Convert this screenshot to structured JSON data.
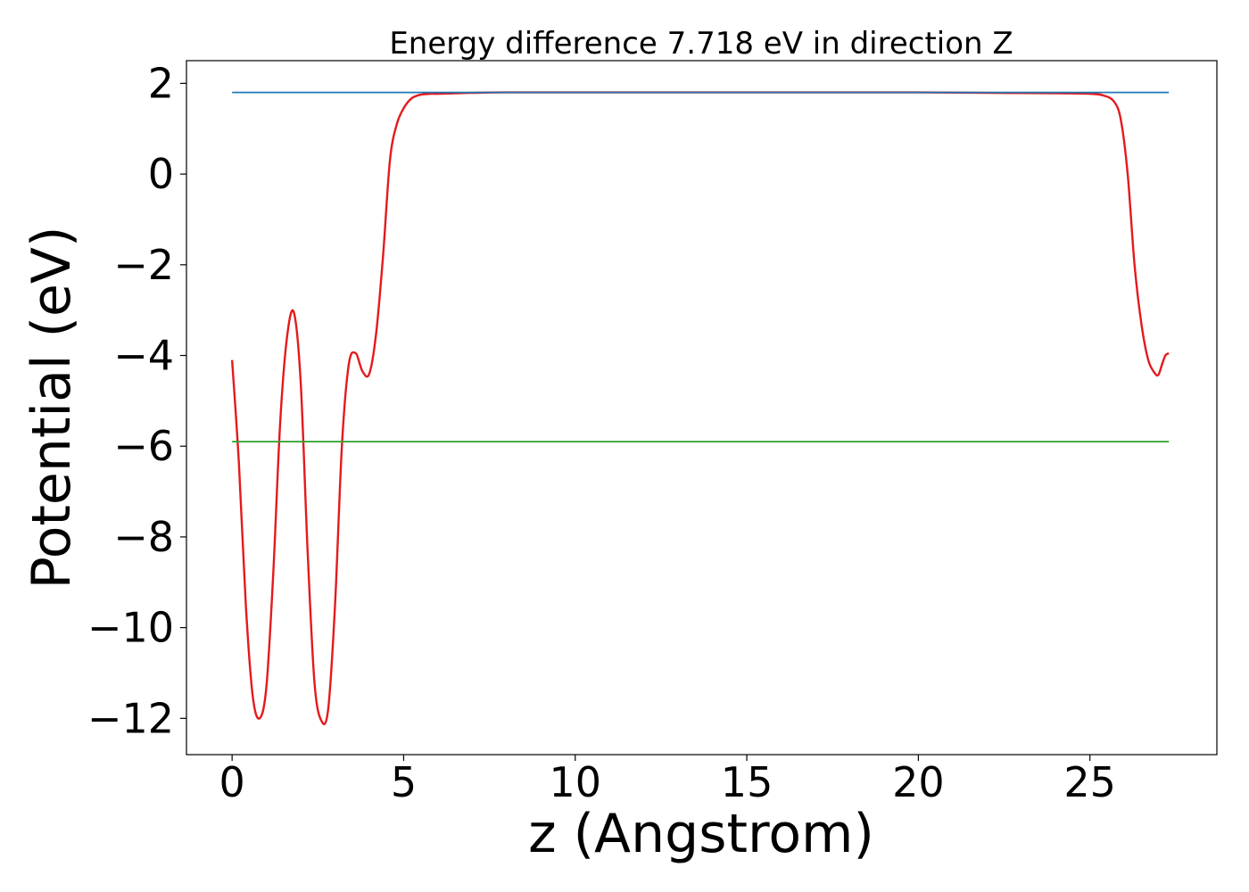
{
  "chart_data": {
    "type": "line",
    "title": "Energy difference 7.718 eV in direction Z",
    "xlabel": "z (Angstrom)",
    "ylabel": "Potential (eV)",
    "xlim": [
      -1.33,
      28.7
    ],
    "ylim": [
      -12.8,
      2.5
    ],
    "xticks": [
      0,
      5,
      10,
      15,
      20,
      25
    ],
    "yticks": [
      2,
      0,
      -2,
      -4,
      -6,
      -8,
      -10,
      -12
    ],
    "xtick_labels": [
      "0",
      "5",
      "10",
      "15",
      "20",
      "25"
    ],
    "ytick_labels": [
      "2",
      "0",
      "−2",
      "−4",
      "−6",
      "−8",
      "−10",
      "−12"
    ],
    "grid": false,
    "legend": "none",
    "series": [
      {
        "color": "#e41a1c",
        "x": [
          0.0,
          0.2,
          0.4,
          0.6,
          0.8,
          1.0,
          1.2,
          1.4,
          1.6,
          1.8,
          2.0,
          2.2,
          2.4,
          2.6,
          2.8,
          3.0,
          3.2,
          3.4,
          3.6,
          3.8,
          4.0,
          4.2,
          4.4,
          4.6,
          4.8,
          5.0,
          5.2,
          5.4,
          5.6,
          5.8,
          6.0,
          6.5,
          7.0,
          8.0,
          10.0,
          12.0,
          14.0,
          16.0,
          18.0,
          20.0,
          22.0,
          24.0,
          25.0,
          25.4,
          25.7,
          25.9,
          26.1,
          26.3,
          26.5,
          26.7,
          26.9,
          27.0,
          27.1,
          27.2,
          27.3
        ],
        "values": [
          -4.1,
          -6.4,
          -9.5,
          -11.5,
          -12.0,
          -11.3,
          -8.8,
          -5.5,
          -3.6,
          -3.05,
          -4.6,
          -8.3,
          -11.2,
          -12.05,
          -11.8,
          -9.5,
          -6.0,
          -4.2,
          -3.95,
          -4.35,
          -4.4,
          -3.5,
          -1.8,
          0.3,
          1.1,
          1.45,
          1.65,
          1.73,
          1.76,
          1.77,
          1.77,
          1.78,
          1.79,
          1.8,
          1.8,
          1.8,
          1.8,
          1.8,
          1.8,
          1.8,
          1.79,
          1.78,
          1.77,
          1.73,
          1.6,
          1.2,
          0.0,
          -2.0,
          -3.3,
          -4.1,
          -4.4,
          -4.42,
          -4.2,
          -4.0,
          -3.95
        ]
      },
      {
        "color": "#1f77b4",
        "x": [
          0,
          27.3
        ],
        "values": [
          1.8,
          1.8
        ]
      },
      {
        "color": "#2ca02c",
        "x": [
          0,
          27.3
        ],
        "values": [
          -5.9,
          -5.9
        ]
      }
    ]
  }
}
